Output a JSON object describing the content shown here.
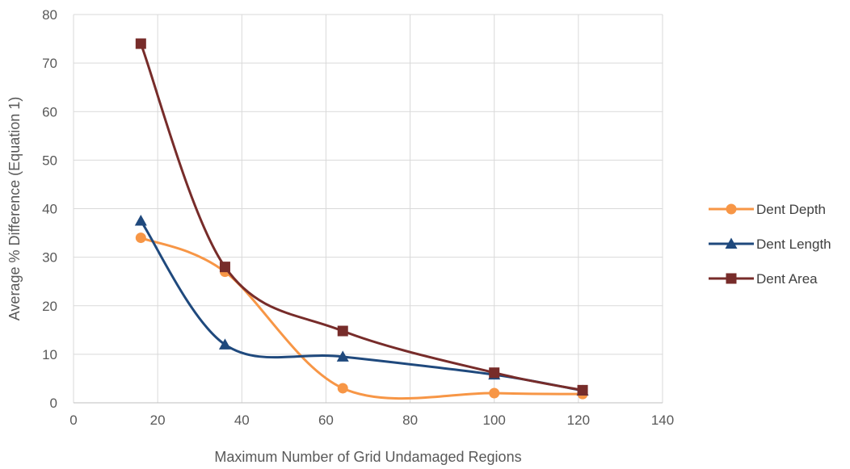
{
  "chart_data": {
    "type": "line",
    "xlabel": "Maximum Number of Grid Undamaged Regions",
    "ylabel": "Average % Difference (Equation 1)",
    "xlim": [
      0,
      140
    ],
    "ylim": [
      0,
      80
    ],
    "xticks": [
      0,
      20,
      40,
      60,
      80,
      100,
      120,
      140
    ],
    "yticks": [
      0,
      10,
      20,
      30,
      40,
      50,
      60,
      70,
      80
    ],
    "grid": true,
    "smooth": true,
    "legend_position": "right",
    "series": [
      {
        "name": "Dent Depth",
        "color": "#F79646",
        "marker": "circle",
        "x": [
          16,
          36,
          64,
          100,
          121
        ],
        "y": [
          34,
          27,
          3,
          2,
          1.8
        ]
      },
      {
        "name": "Dent Length",
        "color": "#1F497D",
        "marker": "triangle",
        "x": [
          16,
          36,
          64,
          100,
          121
        ],
        "y": [
          37.5,
          12,
          9.5,
          5.8,
          2.5
        ]
      },
      {
        "name": "Dent Area",
        "color": "#772C2A",
        "marker": "square",
        "x": [
          16,
          36,
          64,
          100,
          121
        ],
        "y": [
          74,
          28,
          14.8,
          6.2,
          2.6
        ]
      }
    ]
  }
}
